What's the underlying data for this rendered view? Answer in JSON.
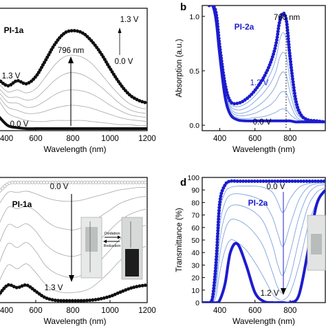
{
  "colors": {
    "black_series": "#111111",
    "gray_series": "#b0b0b0",
    "blue_series": "#1c1ccf",
    "light_blue_series": "#7fa2e0",
    "axis": "#000000"
  },
  "panels": {
    "b": {
      "letter": "b"
    },
    "d": {
      "letter": "d"
    }
  },
  "insets": {
    "cell_photo_a": "cuvette-photo",
    "cell_photo_b": "cuvette-photo"
  },
  "chart_data": [
    {
      "id": "a",
      "type": "line",
      "title": "PI-1a",
      "xlabel": "Wavelength (nm)",
      "ylabel": "",
      "xlim": [
        400,
        1200
      ],
      "ylim": [
        0,
        1.2
      ],
      "xticks": [
        {
          "v": 400,
          "t": "400"
        },
        {
          "v": 600,
          "t": "600"
        },
        {
          "v": 800,
          "t": "800"
        },
        {
          "v": 1000,
          "t": "1000"
        },
        {
          "v": 1200,
          "t": "1200"
        }
      ],
      "yticks": [],
      "annotations": {
        "peak": "796 nm",
        "top_voltage": "1.3 V",
        "bottom_voltage": "0.0 V",
        "start_voltage": "1.3 V",
        "end_voltage": "0.0 V"
      },
      "x": [
        400,
        450,
        500,
        550,
        600,
        650,
        700,
        750,
        796,
        850,
        900,
        950,
        1000,
        1050,
        1100,
        1150,
        1200
      ],
      "series": [
        {
          "style": "black_markers",
          "values": [
            0.5,
            0.44,
            0.49,
            0.46,
            0.53,
            0.68,
            0.84,
            0.95,
            0.98,
            0.96,
            0.88,
            0.76,
            0.61,
            0.47,
            0.36,
            0.3,
            0.27
          ]
        },
        {
          "style": "gray",
          "values": [
            0.46,
            0.38,
            0.4,
            0.37,
            0.41,
            0.52,
            0.64,
            0.72,
            0.74,
            0.72,
            0.66,
            0.56,
            0.45,
            0.35,
            0.27,
            0.23,
            0.21
          ]
        },
        {
          "style": "gray",
          "values": [
            0.42,
            0.33,
            0.33,
            0.3,
            0.32,
            0.4,
            0.49,
            0.55,
            0.57,
            0.55,
            0.5,
            0.43,
            0.35,
            0.27,
            0.21,
            0.18,
            0.17
          ]
        },
        {
          "style": "gray",
          "values": [
            0.38,
            0.28,
            0.27,
            0.23,
            0.24,
            0.29,
            0.35,
            0.39,
            0.4,
            0.39,
            0.36,
            0.31,
            0.25,
            0.2,
            0.16,
            0.14,
            0.13
          ]
        },
        {
          "style": "gray",
          "values": [
            0.34,
            0.23,
            0.2,
            0.17,
            0.17,
            0.19,
            0.22,
            0.24,
            0.25,
            0.24,
            0.22,
            0.19,
            0.16,
            0.13,
            0.11,
            0.1,
            0.09
          ]
        },
        {
          "style": "gray",
          "values": [
            0.3,
            0.17,
            0.13,
            0.1,
            0.09,
            0.09,
            0.1,
            0.1,
            0.1,
            0.1,
            0.09,
            0.08,
            0.07,
            0.06,
            0.06,
            0.05,
            0.05
          ]
        },
        {
          "style": "black_thick",
          "values": [
            0.14,
            0.05,
            0.03,
            0.02,
            0.02,
            0.02,
            0.02,
            0.02,
            0.02,
            0.02,
            0.02,
            0.02,
            0.02,
            0.02,
            0.02,
            0.02,
            0.02
          ]
        }
      ]
    },
    {
      "id": "b",
      "type": "line",
      "title": "PI-2a",
      "xlabel": "Wavelength (nm)",
      "ylabel": "Absorption (a.u.)",
      "xlim": [
        300,
        1000
      ],
      "ylim": [
        -0.05,
        1.1
      ],
      "xticks": [
        {
          "v": 400,
          "t": "400"
        },
        {
          "v": 600,
          "t": "600"
        },
        {
          "v": 800,
          "t": "800"
        }
      ],
      "yticks": [
        {
          "v": 0.0,
          "t": "0.0"
        },
        {
          "v": 0.5,
          "t": "0.5"
        },
        {
          "v": 1.0,
          "t": "1.0"
        }
      ],
      "annotations": {
        "peak": "760 nm",
        "top_voltage": "1.2 V",
        "bottom_voltage": "0.0 V"
      },
      "x": [
        340,
        360,
        380,
        400,
        430,
        460,
        500,
        550,
        600,
        650,
        690,
        720,
        740,
        760,
        780,
        800,
        830,
        860,
        900,
        950,
        1000
      ],
      "series": [
        {
          "style": "blue_markers",
          "values": [
            1.1,
            1.1,
            1.02,
            0.72,
            0.38,
            0.22,
            0.2,
            0.24,
            0.32,
            0.44,
            0.58,
            0.75,
            0.95,
            1.03,
            0.95,
            0.62,
            0.25,
            0.1,
            0.05,
            0.04,
            0.03
          ]
        },
        {
          "style": "light_blue",
          "values": [
            1.1,
            1.1,
            1.0,
            0.7,
            0.36,
            0.2,
            0.17,
            0.2,
            0.27,
            0.37,
            0.48,
            0.62,
            0.78,
            0.85,
            0.78,
            0.51,
            0.21,
            0.09,
            0.05,
            0.04,
            0.03
          ]
        },
        {
          "style": "light_blue",
          "values": [
            1.1,
            1.1,
            0.99,
            0.69,
            0.34,
            0.18,
            0.14,
            0.16,
            0.22,
            0.3,
            0.39,
            0.5,
            0.62,
            0.67,
            0.62,
            0.41,
            0.17,
            0.08,
            0.04,
            0.03,
            0.03
          ]
        },
        {
          "style": "light_blue",
          "values": [
            1.1,
            1.1,
            0.98,
            0.67,
            0.32,
            0.16,
            0.11,
            0.12,
            0.16,
            0.22,
            0.29,
            0.37,
            0.45,
            0.49,
            0.45,
            0.3,
            0.13,
            0.07,
            0.04,
            0.03,
            0.03
          ]
        },
        {
          "style": "light_blue",
          "values": [
            1.1,
            1.1,
            0.97,
            0.66,
            0.3,
            0.14,
            0.09,
            0.09,
            0.11,
            0.15,
            0.19,
            0.24,
            0.29,
            0.31,
            0.29,
            0.2,
            0.09,
            0.05,
            0.04,
            0.03,
            0.03
          ]
        },
        {
          "style": "light_blue",
          "values": [
            1.1,
            1.1,
            0.96,
            0.65,
            0.28,
            0.12,
            0.07,
            0.06,
            0.07,
            0.08,
            0.1,
            0.12,
            0.14,
            0.15,
            0.14,
            0.1,
            0.06,
            0.04,
            0.03,
            0.03,
            0.03
          ]
        },
        {
          "style": "blue_thick",
          "values": [
            1.1,
            1.1,
            0.95,
            0.64,
            0.26,
            0.1,
            0.05,
            0.04,
            0.04,
            0.04,
            0.04,
            0.04,
            0.04,
            0.04,
            0.04,
            0.04,
            0.03,
            0.03,
            0.03,
            0.03,
            0.03
          ]
        }
      ]
    },
    {
      "id": "c",
      "type": "line",
      "title": "PI-1a",
      "xlabel": "Wavelength (nm)",
      "ylabel": "",
      "xlim": [
        400,
        1200
      ],
      "ylim": [
        0,
        100
      ],
      "xticks": [
        {
          "v": 400,
          "t": "400"
        },
        {
          "v": 600,
          "t": "600"
        },
        {
          "v": 800,
          "t": "800"
        },
        {
          "v": 1000,
          "t": "1000"
        },
        {
          "v": 1200,
          "t": "1200"
        }
      ],
      "yticks": [],
      "annotations": {
        "top_voltage": "0.0 V",
        "bottom_voltage": "1.3 V",
        "inset_oxidation": "Oxidation",
        "inset_reduction": "Reduction"
      },
      "x": [
        400,
        450,
        500,
        550,
        600,
        650,
        700,
        750,
        800,
        850,
        900,
        950,
        1000,
        1050,
        1100,
        1150,
        1200
      ],
      "series": [
        {
          "style": "gray_markers",
          "values": [
            88,
            95,
            96,
            96,
            96,
            96,
            96,
            96,
            96,
            96,
            96,
            96,
            96,
            96,
            96,
            96,
            96
          ]
        },
        {
          "style": "gray",
          "values": [
            78,
            88,
            88,
            89,
            87,
            84,
            82,
            81,
            81,
            82,
            84,
            86,
            88,
            90,
            91,
            92,
            92
          ]
        },
        {
          "style": "gray",
          "values": [
            62,
            76,
            75,
            77,
            73,
            66,
            61,
            59,
            58,
            60,
            64,
            69,
            74,
            79,
            82,
            84,
            85
          ]
        },
        {
          "style": "gray",
          "values": [
            46,
            62,
            60,
            63,
            57,
            47,
            41,
            38,
            37,
            39,
            44,
            51,
            58,
            65,
            70,
            73,
            75
          ]
        },
        {
          "style": "gray",
          "values": [
            30,
            47,
            44,
            48,
            41,
            30,
            24,
            21,
            20,
            22,
            27,
            34,
            42,
            50,
            56,
            60,
            62
          ]
        },
        {
          "style": "gray",
          "values": [
            16,
            30,
            27,
            31,
            24,
            15,
            10,
            8,
            8,
            9,
            12,
            18,
            25,
            33,
            39,
            43,
            45
          ]
        },
        {
          "style": "black_markers",
          "values": [
            6,
            14,
            12,
            14,
            9,
            4,
            2,
            1.5,
            1.5,
            1.5,
            2,
            3,
            5,
            8,
            11,
            13,
            14
          ]
        }
      ]
    },
    {
      "id": "d",
      "type": "line",
      "title": "PI-2a",
      "xlabel": "Wavelength (nm)",
      "ylabel": "Transmittance (%)",
      "xlim": [
        300,
        1000
      ],
      "ylim": [
        0,
        100
      ],
      "xticks": [
        {
          "v": 400,
          "t": "400"
        },
        {
          "v": 600,
          "t": "600"
        },
        {
          "v": 800,
          "t": "800"
        }
      ],
      "yticks": [
        {
          "v": 0,
          "t": "0"
        },
        {
          "v": 10,
          "t": "10"
        },
        {
          "v": 20,
          "t": "20"
        },
        {
          "v": 30,
          "t": "30"
        },
        {
          "v": 40,
          "t": "40"
        },
        {
          "v": 50,
          "t": "50"
        },
        {
          "v": 60,
          "t": "60"
        },
        {
          "v": 70,
          "t": "70"
        },
        {
          "v": 80,
          "t": "80"
        },
        {
          "v": 90,
          "t": "90"
        },
        {
          "v": 100,
          "t": "100"
        }
      ],
      "annotations": {
        "top_voltage": "0.0 V",
        "bottom_voltage": "1.2 V"
      },
      "x": [
        300,
        340,
        360,
        380,
        400,
        430,
        460,
        500,
        550,
        600,
        650,
        700,
        730,
        760,
        800,
        850,
        900,
        950,
        1000
      ],
      "series": [
        {
          "style": "blue_markers",
          "values": [
            0,
            0,
            5,
            35,
            80,
            94,
            97,
            97,
            97,
            97,
            97,
            97,
            97,
            97,
            97,
            97,
            97,
            97,
            97
          ]
        },
        {
          "style": "light_blue",
          "values": [
            0,
            0,
            4,
            30,
            72,
            88,
            92,
            93,
            93,
            93,
            92,
            88,
            80,
            72,
            83,
            92,
            95,
            96,
            96
          ]
        },
        {
          "style": "light_blue",
          "values": [
            0,
            0,
            3,
            24,
            62,
            80,
            86,
            87,
            86,
            84,
            80,
            68,
            55,
            45,
            62,
            82,
            92,
            95,
            95
          ]
        },
        {
          "style": "light_blue",
          "values": [
            0,
            0,
            2,
            18,
            50,
            70,
            77,
            78,
            76,
            72,
            64,
            46,
            30,
            22,
            40,
            68,
            86,
            93,
            94
          ]
        },
        {
          "style": "light_blue",
          "values": [
            0,
            0,
            1,
            12,
            38,
            58,
            66,
            66,
            62,
            55,
            44,
            24,
            12,
            8,
            20,
            50,
            76,
            88,
            92
          ]
        },
        {
          "style": "light_blue",
          "values": [
            0,
            0,
            0,
            6,
            24,
            42,
            50,
            48,
            42,
            32,
            20,
            7,
            3,
            2,
            8,
            30,
            60,
            80,
            88
          ]
        },
        {
          "style": "blue_thick",
          "values": [
            0,
            0,
            0,
            0,
            2,
            15,
            40,
            47,
            30,
            8,
            1,
            0,
            0,
            0,
            0,
            6,
            40,
            78,
            90
          ]
        }
      ]
    }
  ]
}
